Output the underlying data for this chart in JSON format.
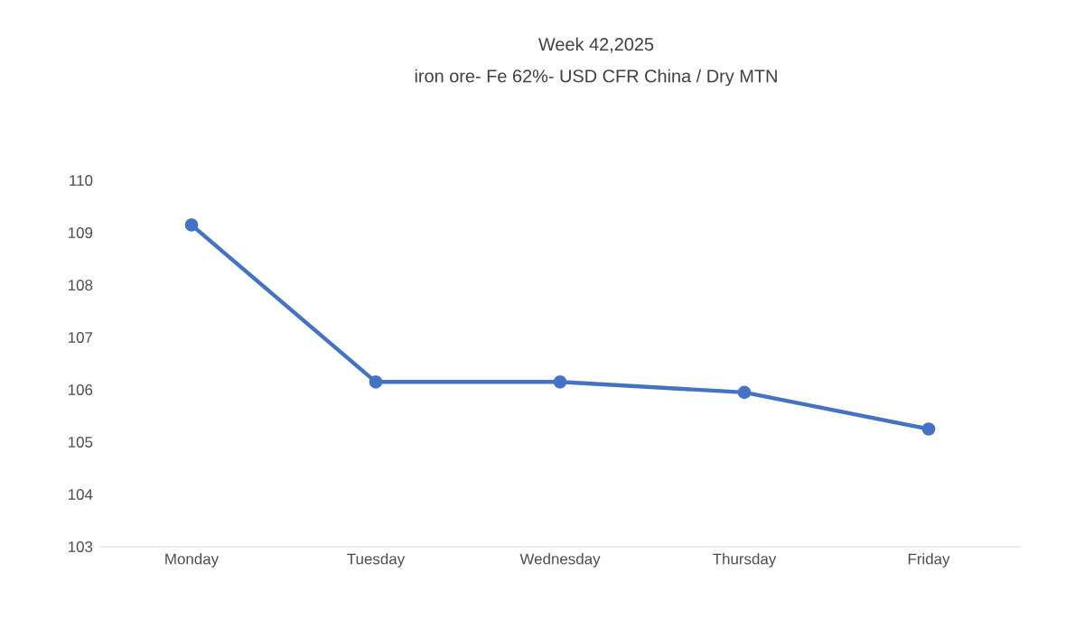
{
  "chart_data": {
    "type": "line",
    "title": "Week  42,2025",
    "subtitle": "iron ore- Fe 62%- USD CFR China / Dry MTN",
    "categories": [
      "Monday",
      "Tuesday",
      "Wednesday",
      "Thursday",
      "Friday"
    ],
    "series": [
      {
        "color": "#4472c4",
        "values": [
          109.15,
          106.15,
          106.15,
          105.95,
          105.25
        ]
      }
    ],
    "ylim": [
      103,
      110
    ],
    "yticks": [
      103,
      104,
      105,
      106,
      107,
      108,
      109,
      110
    ],
    "marker": "circle",
    "line_style": "solid"
  }
}
